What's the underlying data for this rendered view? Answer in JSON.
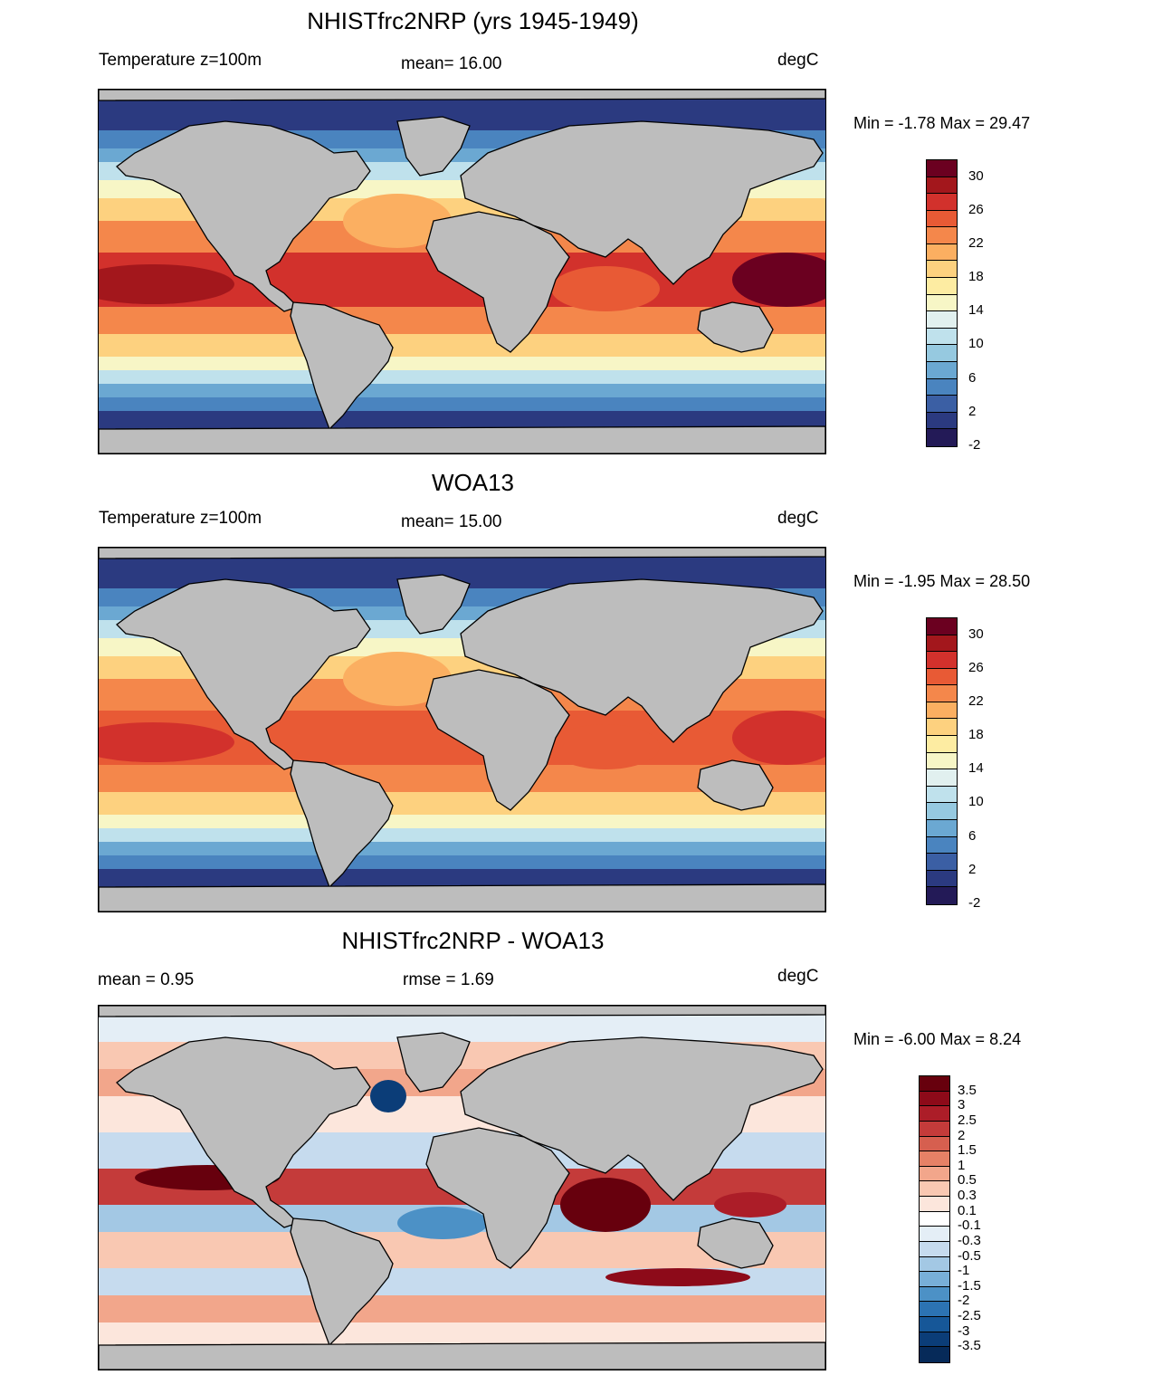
{
  "panels": [
    {
      "id": "model",
      "title": "NHISTfrc2NRP (yrs 1945-1949)",
      "left_label": "Temperature z=100m",
      "center_label": "mean=  16.00",
      "right_label": "degC",
      "minmax": "Min =  -1.78 Max =  29.47",
      "colorbar_labels": [
        "30",
        "26",
        "22",
        "18",
        "14",
        "10",
        "6",
        "2",
        "-2"
      ]
    },
    {
      "id": "obs",
      "title": "WOA13",
      "left_label": "Temperature z=100m",
      "center_label": "mean=  15.00",
      "right_label": "degC",
      "minmax": "Min =  -1.95 Max =  28.50",
      "colorbar_labels": [
        "30",
        "26",
        "22",
        "18",
        "14",
        "10",
        "6",
        "2",
        "-2"
      ]
    },
    {
      "id": "diff",
      "title": "NHISTfrc2NRP - WOA13",
      "left_label": "mean =   0.95",
      "center_label": "rmse =   1.69",
      "right_label": "degC",
      "minmax": "Min =  -6.00 Max =   8.24",
      "colorbar_labels": [
        "3.5",
        "3",
        "2.5",
        "2",
        "1.5",
        "1",
        "0.5",
        "0.3",
        "0.1",
        "-0.1",
        "-0.3",
        "-0.5",
        "-1",
        "-1.5",
        "-2",
        "-2.5",
        "-3",
        "-3.5"
      ]
    }
  ],
  "colors": {
    "land": "#bdbdbd",
    "temp_scale": [
      "#6b0020",
      "#a3171c",
      "#d2312c",
      "#e85a35",
      "#f4874b",
      "#fbaf61",
      "#fdd17f",
      "#fdeca2",
      "#f7f6c6",
      "#e1f0ef",
      "#bfe1ec",
      "#96c9e0",
      "#6ba8d2",
      "#4a84bf",
      "#3b5fa4",
      "#2b3a80",
      "#231a57"
    ],
    "diff_scale": [
      "#67000d",
      "#8d0a19",
      "#ac1d28",
      "#c43b3a",
      "#d65f4f",
      "#e68166",
      "#f2a68b",
      "#f9c8b2",
      "#fce6dc",
      "#ffffff",
      "#e4eef6",
      "#c6dbee",
      "#a3c8e4",
      "#78afd8",
      "#4c91c6",
      "#2c73b3",
      "#165798",
      "#0b3d78",
      "#062a59"
    ]
  }
}
